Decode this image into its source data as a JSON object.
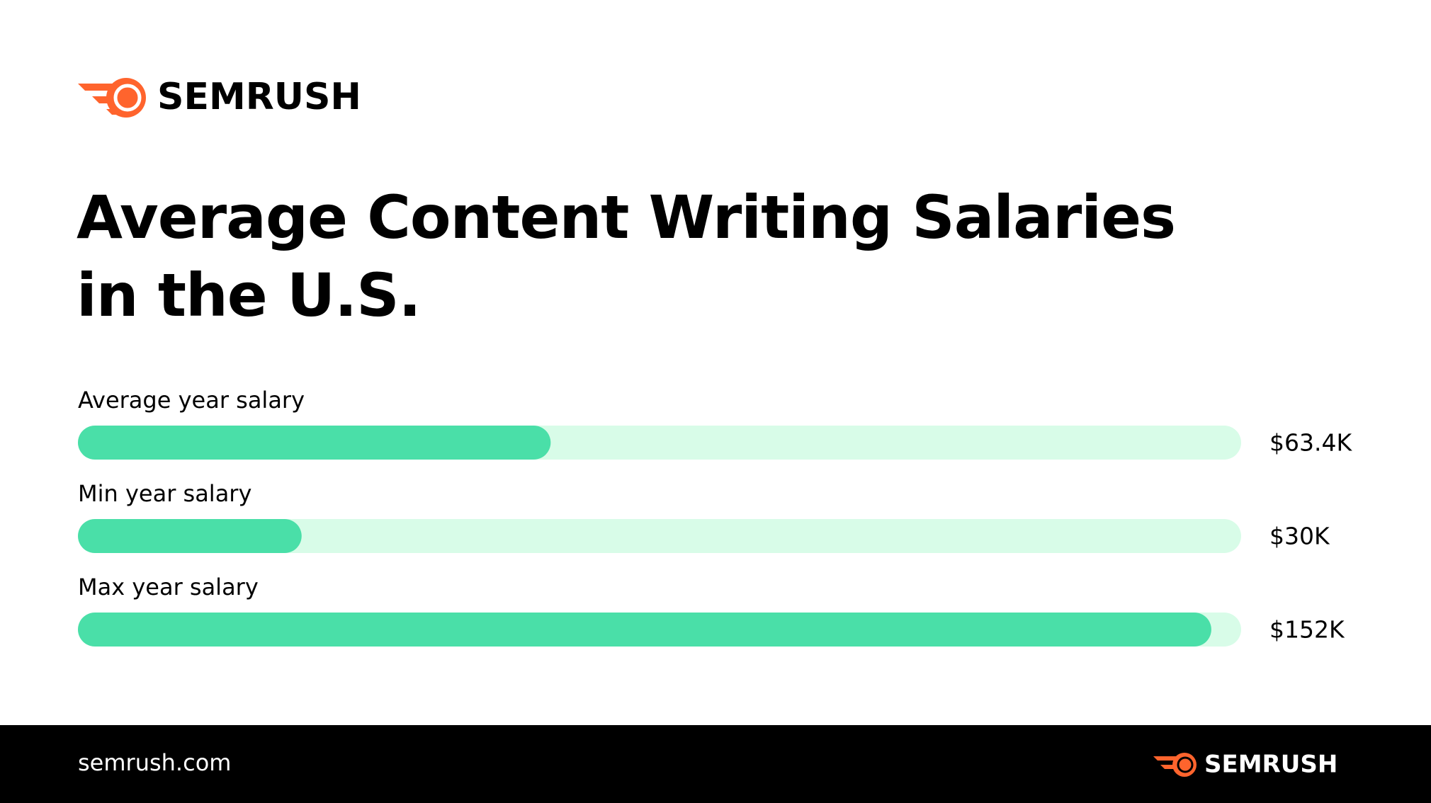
{
  "header": {
    "brand": "SEMRUSH"
  },
  "chart_data": {
    "type": "bar",
    "orientation": "horizontal",
    "title": "Average Content Writing Salaries in the U.S.",
    "categories": [
      "Average year salary",
      "Min year salary",
      "Max year salary"
    ],
    "values": [
      63400,
      30000,
      152000
    ],
    "value_labels": [
      "$63.4K",
      "$30K",
      "$152K"
    ],
    "color": "#4adfa8",
    "track_color": "#d8fce8",
    "xlim": [
      0,
      156000
    ]
  },
  "footer": {
    "url": "semrush.com",
    "brand": "SEMRUSH"
  }
}
